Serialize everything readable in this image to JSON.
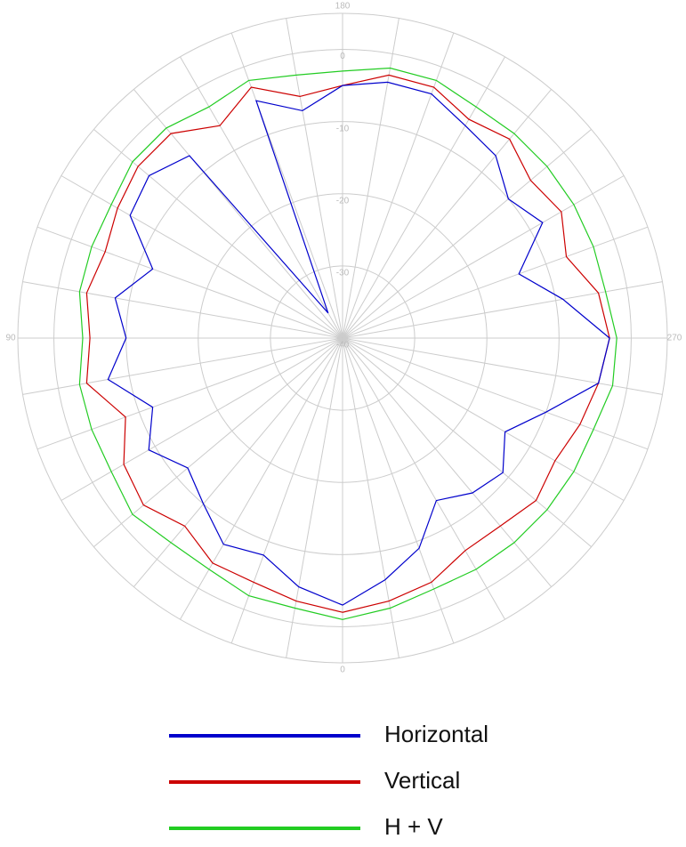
{
  "chart_data": {
    "type": "polar",
    "theta": [
      0,
      10,
      20,
      30,
      40,
      50,
      60,
      70,
      80,
      90,
      100,
      110,
      120,
      130,
      140,
      150,
      160,
      170,
      180,
      190,
      200,
      210,
      220,
      230,
      240,
      250,
      260,
      270,
      280,
      290,
      300,
      310,
      320,
      330,
      340,
      350
    ],
    "theta_zero": "bottom",
    "theta_direction": "clockwise",
    "thetaticks": [
      0,
      90,
      180,
      270
    ],
    "rlim": [
      -40,
      5
    ],
    "rticks": [
      -40,
      -30,
      -20,
      -10,
      0
    ],
    "grid": true,
    "series": [
      {
        "name": "Horizontal",
        "color": "#0000cc",
        "values": [
          -3,
          -5,
          -8,
          -7,
          -10,
          -12,
          -9,
          -12,
          -7,
          -10,
          -8,
          -12,
          -6,
          -5,
          -7,
          -36,
          -5,
          -8,
          -5,
          -4,
          -4,
          -6,
          -7,
          -10,
          -8,
          -14,
          -9,
          -3,
          -4,
          -10,
          -14,
          -11,
          -12,
          -14,
          -9,
          -6
        ]
      },
      {
        "name": "Vertical",
        "color": "#cc0000",
        "values": [
          -2,
          -3,
          -4,
          -4,
          -6,
          -4,
          -5,
          -8,
          -4,
          -5,
          -4,
          -5,
          -4,
          -3,
          -3,
          -6,
          -3,
          -6,
          -5,
          -3,
          -3,
          -5,
          -4,
          -6,
          -5,
          -7,
          -4,
          -3,
          -4,
          -5,
          -6,
          -5,
          -6,
          -6,
          -4,
          -3
        ]
      },
      {
        "name": "H + V",
        "color": "#22cc22",
        "values": [
          -1,
          -2,
          -2,
          -3,
          -3,
          -2,
          -3,
          -3,
          -3,
          -4,
          -3,
          -3,
          -3,
          -2,
          -2,
          -3,
          -2,
          -3,
          -3,
          -2,
          -2,
          -3,
          -3,
          -3,
          -3,
          -3,
          -3,
          -2,
          -2,
          -3,
          -3,
          -3,
          -3,
          -3,
          -3,
          -2
        ]
      }
    ]
  }
}
